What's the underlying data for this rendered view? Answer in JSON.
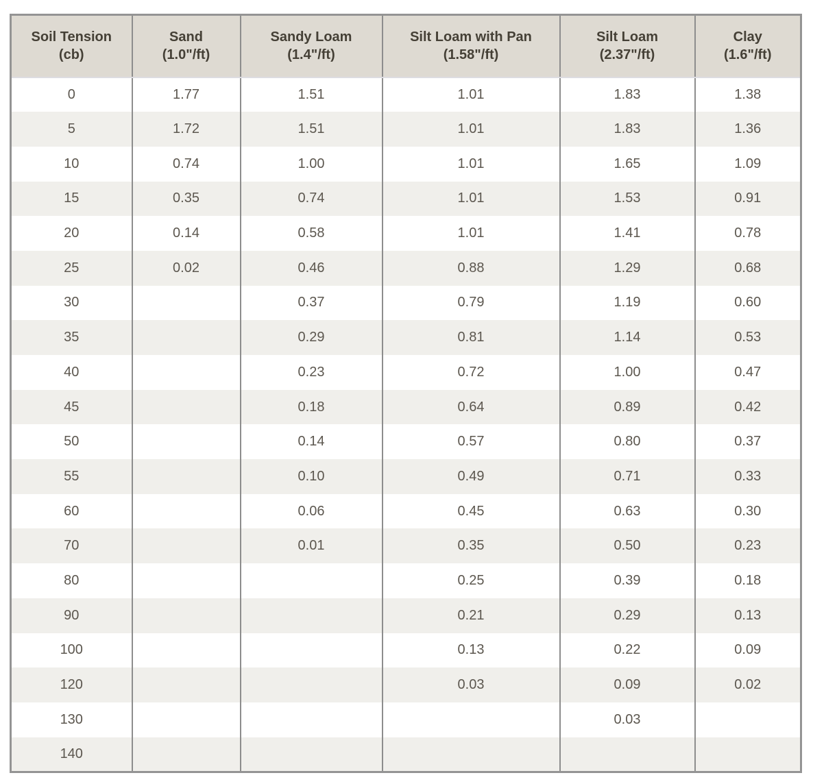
{
  "colors": {
    "header_bg": "#dedad2",
    "header_text": "#454036",
    "body_text": "#5c574f",
    "stripe_bg": "#f0efeb",
    "grid_border": "#8d8d8d",
    "outer_border": "#949494",
    "page_bg": "#ffffff"
  },
  "chart_data": {
    "type": "table",
    "columns": [
      {
        "title": "Soil Tension",
        "sub": "(cb)"
      },
      {
        "title": "Sand",
        "sub": "(1.0\"/ft)"
      },
      {
        "title": "Sandy Loam",
        "sub": "(1.4\"/ft)"
      },
      {
        "title": "Silt Loam with Pan",
        "sub": "(1.58\"/ft)"
      },
      {
        "title": "Silt Loam",
        "sub": "(2.37\"/ft)"
      },
      {
        "title": "Clay",
        "sub": "(1.6\"/ft)"
      }
    ],
    "rows": [
      [
        "0",
        "1.77",
        "1.51",
        "1.01",
        "1.83",
        "1.38"
      ],
      [
        "5",
        "1.72",
        "1.51",
        "1.01",
        "1.83",
        "1.36"
      ],
      [
        "10",
        "0.74",
        "1.00",
        "1.01",
        "1.65",
        "1.09"
      ],
      [
        "15",
        "0.35",
        "0.74",
        "1.01",
        "1.53",
        "0.91"
      ],
      [
        "20",
        "0.14",
        "0.58",
        "1.01",
        "1.41",
        "0.78"
      ],
      [
        "25",
        "0.02",
        "0.46",
        "0.88",
        "1.29",
        "0.68"
      ],
      [
        "30",
        "",
        "0.37",
        "0.79",
        "1.19",
        "0.60"
      ],
      [
        "35",
        "",
        "0.29",
        "0.81",
        "1.14",
        "0.53"
      ],
      [
        "40",
        "",
        "0.23",
        "0.72",
        "1.00",
        "0.47"
      ],
      [
        "45",
        "",
        "0.18",
        "0.64",
        "0.89",
        "0.42"
      ],
      [
        "50",
        "",
        "0.14",
        "0.57",
        "0.80",
        "0.37"
      ],
      [
        "55",
        "",
        "0.10",
        "0.49",
        "0.71",
        "0.33"
      ],
      [
        "60",
        "",
        "0.06",
        "0.45",
        "0.63",
        "0.30"
      ],
      [
        "70",
        "",
        "0.01",
        "0.35",
        "0.50",
        "0.23"
      ],
      [
        "80",
        "",
        "",
        "0.25",
        "0.39",
        "0.18"
      ],
      [
        "90",
        "",
        "",
        "0.21",
        "0.29",
        "0.13"
      ],
      [
        "100",
        "",
        "",
        "0.13",
        "0.22",
        "0.09"
      ],
      [
        "120",
        "",
        "",
        "0.03",
        "0.09",
        "0.02"
      ],
      [
        "130",
        "",
        "",
        "",
        "0.03",
        ""
      ],
      [
        "140",
        "",
        "",
        "",
        "",
        ""
      ]
    ]
  }
}
